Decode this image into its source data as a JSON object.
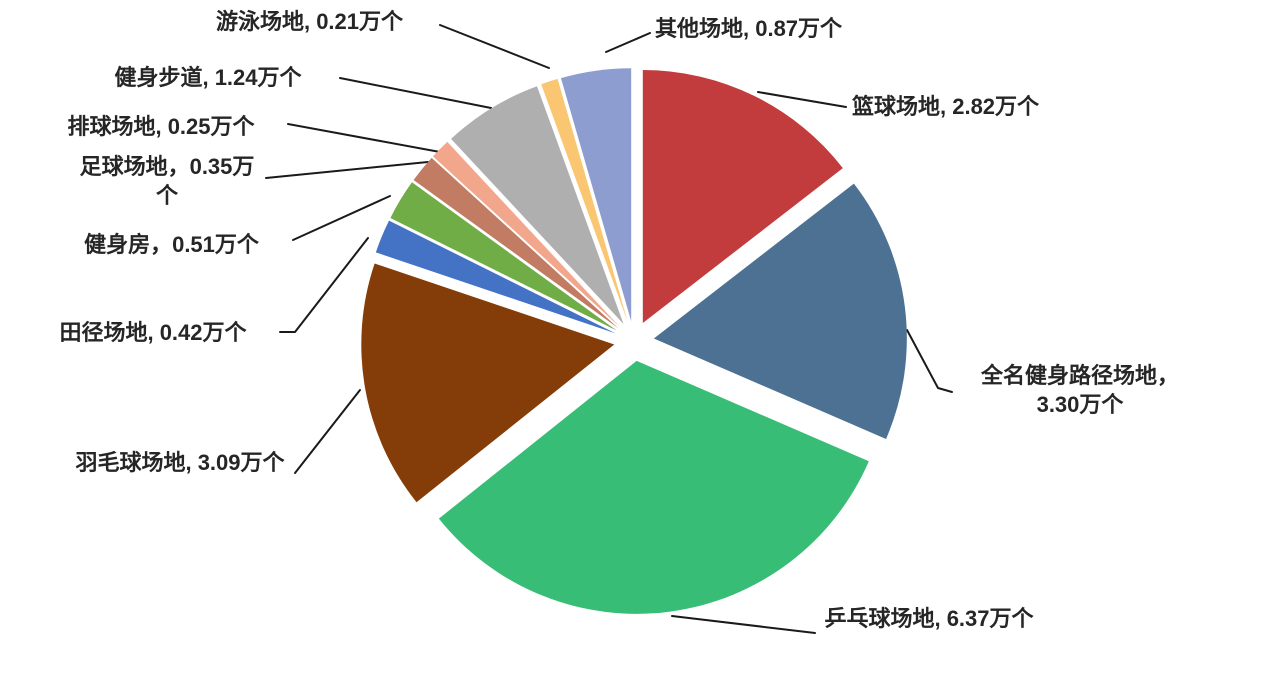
{
  "chart_data": {
    "type": "pie",
    "title": "",
    "unit": "万个",
    "legend": "none",
    "data_labels": "outside-with-leader-lines",
    "start_angle_deg": 0,
    "direction": "clockwise",
    "background_color": "#FFFFFF",
    "label_text_color": "#262626",
    "leader_line_color": "#1A1A1A",
    "explosion": "all-slices-exploded",
    "slices": [
      {
        "label": "篮球场地",
        "value": 2.82,
        "display": "篮球场地, 2.82万个",
        "color": "#C23C3E"
      },
      {
        "label": "全名健身路径场地",
        "value": 3.3,
        "display": "全名健身路径场地，3.30万个",
        "color": "#4D7192"
      },
      {
        "label": "乒乓球场地",
        "value": 6.37,
        "display": "乒乓球场地, 6.37万个",
        "color": "#37BD75"
      },
      {
        "label": "羽毛球场地",
        "value": 3.09,
        "display": "羽毛球场地, 3.09万个",
        "color": "#843D08"
      },
      {
        "label": "田径场地",
        "value": 0.42,
        "display": "田径场地, 0.42万个",
        "color": "#4472C4"
      },
      {
        "label": "健身房",
        "value": 0.51,
        "display": "健身房，0.51万个",
        "color": "#70AD47"
      },
      {
        "label": "足球场地",
        "value": 0.35,
        "display": "足球场地，0.35万个",
        "color": "#C17C63"
      },
      {
        "label": "排球场地",
        "value": 0.25,
        "display": "排球场地, 0.25万个",
        "color": "#F2A78C"
      },
      {
        "label": "健身步道",
        "value": 1.24,
        "display": "健身步道, 1.24万个",
        "color": "#AFAFAF"
      },
      {
        "label": "游泳场地",
        "value": 0.21,
        "display": "游泳场地, 0.21万个",
        "color": "#FAC672"
      },
      {
        "label": "其他场地",
        "value": 0.87,
        "display": "其他场地, 0.87万个",
        "color": "#8D9DD0"
      }
    ]
  }
}
